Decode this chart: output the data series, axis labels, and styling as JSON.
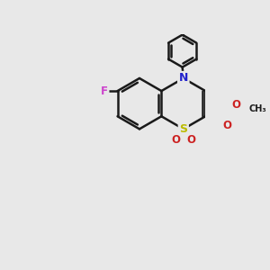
{
  "bg_color": "#e8e8e8",
  "bond_color": "#1a1a1a",
  "bond_width": 1.8,
  "S_color": "#bbbb00",
  "N_color": "#2222cc",
  "O_color": "#cc2222",
  "F_color": "#cc44cc",
  "figsize": [
    3.0,
    3.0
  ],
  "dpi": 100,
  "xlim": [
    0,
    10
  ],
  "ylim": [
    0,
    10
  ]
}
